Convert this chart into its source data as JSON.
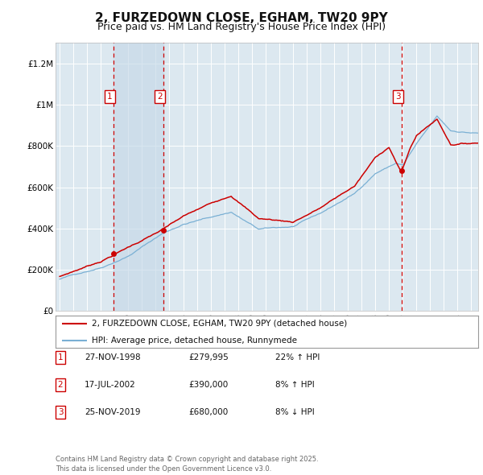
{
  "title": "2, FURZEDOWN CLOSE, EGHAM, TW20 9PY",
  "subtitle": "Price paid vs. HM Land Registry's House Price Index (HPI)",
  "title_fontsize": 11,
  "subtitle_fontsize": 9,
  "background_color": "#ffffff",
  "plot_bg_color": "#dce8f0",
  "grid_color": "#ffffff",
  "sale_color": "#cc0000",
  "hpi_color": "#7ab0d4",
  "ylim": [
    0,
    1300000
  ],
  "yticks": [
    0,
    200000,
    400000,
    600000,
    800000,
    1000000,
    1200000
  ],
  "ytick_labels": [
    "£0",
    "£200K",
    "£400K",
    "£600K",
    "£800K",
    "£1M",
    "£1.2M"
  ],
  "xstart_year": 1995,
  "xend_year": 2026,
  "sale_dates": [
    1998.91,
    2002.54,
    2019.9
  ],
  "sale_prices": [
    279995,
    390000,
    680000
  ],
  "sale_labels": [
    "1",
    "2",
    "3"
  ],
  "sale_shading": [
    [
      1998.91,
      2002.54
    ]
  ],
  "transactions": [
    {
      "num": "1",
      "date": "27-NOV-1998",
      "price": "£279,995",
      "pct": "22%",
      "dir": "↑",
      "label": "HPI"
    },
    {
      "num": "2",
      "date": "17-JUL-2002",
      "price": "£390,000",
      "pct": "8%",
      "dir": "↑",
      "label": "HPI"
    },
    {
      "num": "3",
      "date": "25-NOV-2019",
      "price": "£680,000",
      "pct": "8%",
      "dir": "↓",
      "label": "HPI"
    }
  ],
  "legend_line1": "2, FURZEDOWN CLOSE, EGHAM, TW20 9PY (detached house)",
  "legend_line2": "HPI: Average price, detached house, Runnymede",
  "footer": "Contains HM Land Registry data © Crown copyright and database right 2025.\nThis data is licensed under the Open Government Licence v3.0."
}
